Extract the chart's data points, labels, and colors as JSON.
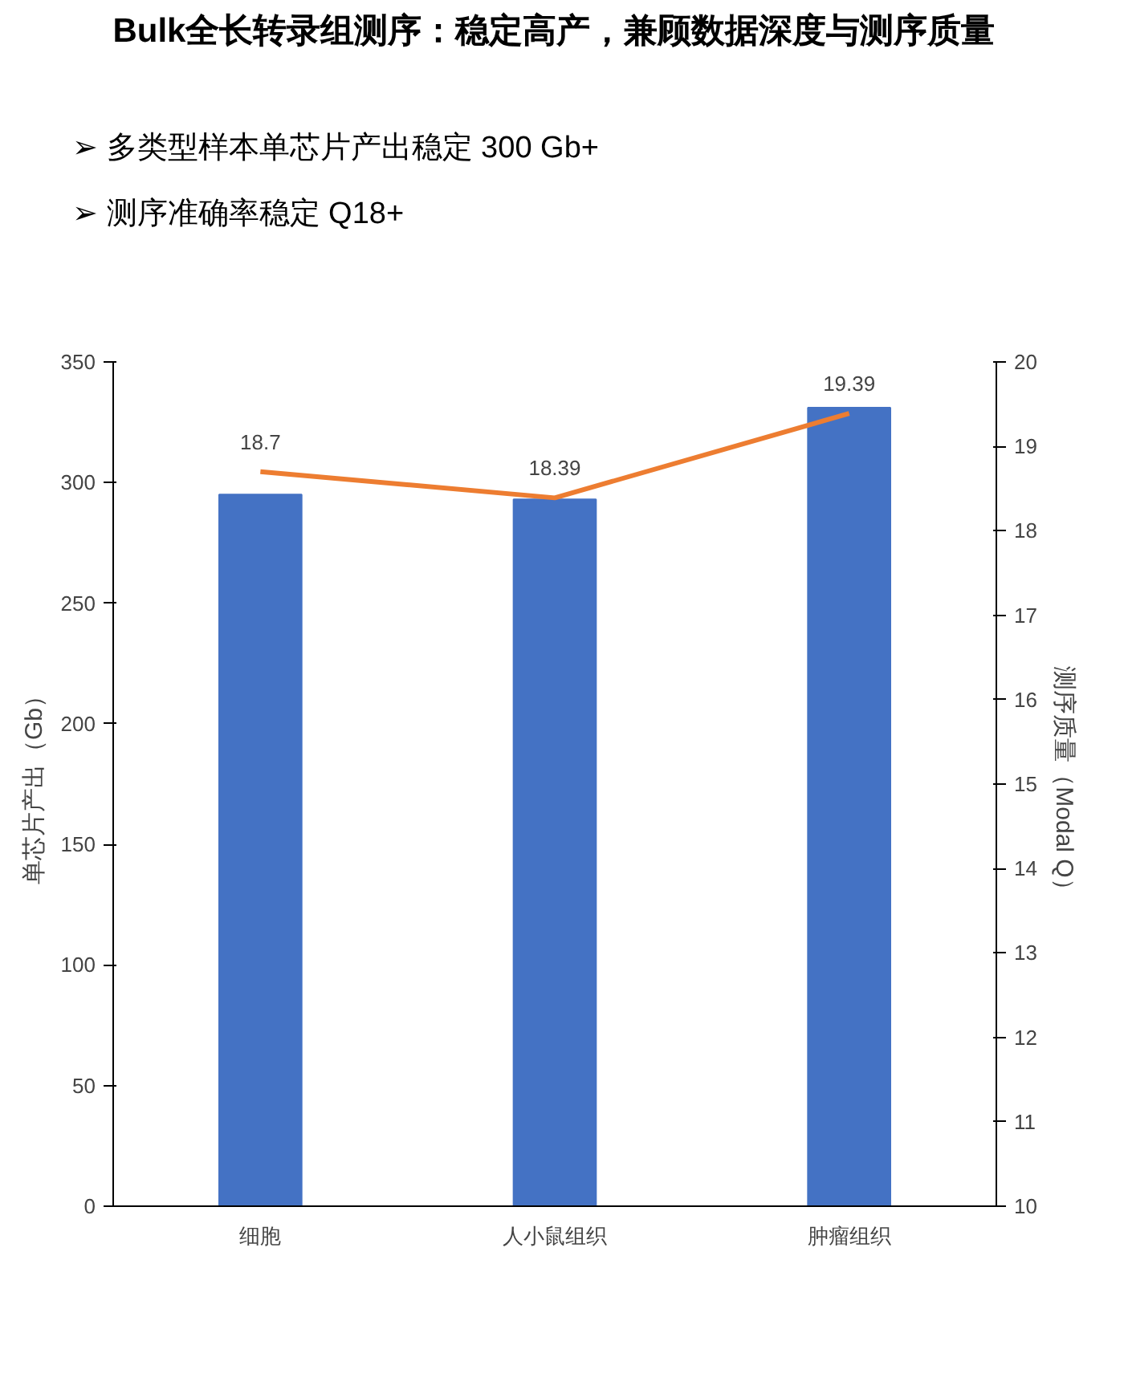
{
  "chart_data": {
    "type": "bar",
    "title": "Bulk全长转录组测序：稳定高产，兼顾数据深度与测序质量",
    "annotations": [
      "➢  多类型样本单芯片产出稳定 300 Gb+",
      "➢  测序准确率稳定 Q18+"
    ],
    "categories": [
      "细胞",
      "人小鼠组织",
      "肿瘤组织"
    ],
    "ylabel": "单芯片产出（Gb）",
    "y2label": "测序质量（Modal Q）",
    "series": [
      {
        "color": "#4472c4",
        "values": [
          295,
          293,
          331
        ]
      },
      {
        "type": "line",
        "axis": "y2",
        "color": "#ed7d31",
        "values": [
          18.7,
          18.39,
          19.39
        ],
        "data_labels": true
      }
    ],
    "ylim": [
      0,
      350
    ],
    "yticks": [
      0,
      50,
      100,
      150,
      200,
      250,
      300,
      350
    ],
    "y2lim": [
      10,
      20
    ],
    "y2ticks": [
      10,
      11,
      12,
      13,
      14,
      15,
      16,
      17,
      18,
      19,
      20
    ],
    "grid": false
  }
}
